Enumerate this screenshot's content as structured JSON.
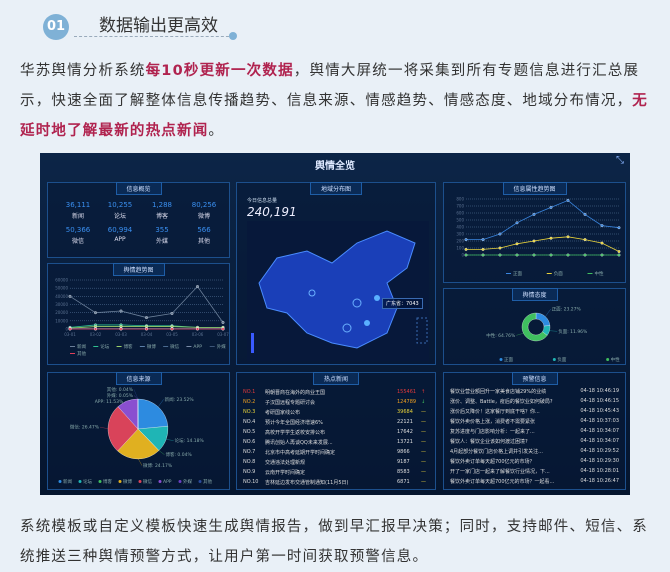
{
  "header": {
    "number": "01",
    "title": "数据输出更高效"
  },
  "intro": {
    "p1_a": "华苏舆情分析系统",
    "p1_hl": "每10秒更新一次数据",
    "p1_b": "，舆情大屏统一将采集到所有专题信息进行汇总展示，快速全面了解整体信息传播趋势、信息来源、情感趋势、情感态度、地域分布情况，",
    "p1_hl2": "无延时地了解最新的热点新闻",
    "p1_c": "。"
  },
  "outro": "系统模板或自定义模板快速生成舆情报告，做到早汇报早决策；同时，支持邮件、短信、系统推送三种舆情预警方式，让用户第一时间获取预警信息。",
  "dashboard": {
    "title": "舆情全览",
    "expand_icon": "collapse-arrows-icon",
    "overview": {
      "title": "信息概览",
      "stats": [
        {
          "value": "36,111",
          "label": "新闻"
        },
        {
          "value": "10,255",
          "label": "论坛"
        },
        {
          "value": "1,288",
          "label": "博客"
        },
        {
          "value": "80,256",
          "label": "微博"
        },
        {
          "value": "50,366",
          "label": "微信"
        },
        {
          "value": "60,994",
          "label": "APP"
        },
        {
          "value": "355",
          "label": "外媒"
        },
        {
          "value": "566",
          "label": "其他"
        }
      ]
    },
    "map": {
      "title": "地域分布图",
      "total_label": "今日信息总量",
      "total": "240,191",
      "tooltip": "广东省：7043"
    },
    "chart_data": [
      {
        "type": "line",
        "title": "舆情趋势图",
        "ylim": [
          0,
          60000
        ],
        "yticks": [
          "0",
          "10000",
          "20000",
          "30000",
          "40000",
          "50000",
          "60000"
        ],
        "categories": [
          "03-01",
          "03-02",
          "03-03",
          "03-04",
          "03-05",
          "03-06",
          "03-07"
        ],
        "series": [
          {
            "name": "新闻",
            "color": "#6b7f99",
            "values": [
              40000,
              20000,
              22000,
              14000,
              19000,
              52000,
              8000
            ]
          },
          {
            "name": "论坛",
            "color": "#2fbf8f",
            "values": [
              2000,
              5000,
              5000,
              4000,
              4000,
              2000,
              2000
            ]
          },
          {
            "name": "博客",
            "color": "#9ad06a",
            "values": [
              1000,
              3000,
              3000,
              3000,
              3000,
              2000,
              2000
            ]
          },
          {
            "name": "微博",
            "color": "#5c7fa8",
            "values": [
              500,
              500,
              500,
              500,
              500,
              500,
              500
            ]
          },
          {
            "name": "微信",
            "color": "#4a6a90",
            "values": [
              300,
              300,
              300,
              300,
              300,
              300,
              300
            ]
          },
          {
            "name": "APP",
            "color": "#7a8ca8",
            "values": [
              200,
              200,
              200,
              200,
              200,
              200,
              200
            ]
          },
          {
            "name": "外媒",
            "color": "#3d5678",
            "values": [
              100,
              100,
              100,
              100,
              100,
              100,
              100
            ]
          },
          {
            "name": "其他",
            "color": "#e0405a",
            "values": [
              0,
              0,
              0,
              0,
              0,
              0,
              0
            ]
          }
        ]
      },
      {
        "type": "line",
        "title": "信息属性趋势图",
        "ylim": [
          0,
          800
        ],
        "yticks": [
          "0",
          "100",
          "200",
          "300",
          "400",
          "500",
          "600",
          "700",
          "800"
        ],
        "series": [
          {
            "name": "正面",
            "color": "#3a86e0",
            "values": [
              220,
              220,
              300,
              460,
              580,
              680,
              780,
              580,
              420,
              390
            ]
          },
          {
            "name": "负面",
            "color": "#e8d23a",
            "values": [
              80,
              80,
              100,
              160,
              200,
              240,
              260,
              220,
              170,
              50
            ]
          },
          {
            "name": "中性",
            "color": "#3fbf5f",
            "values": [
              0,
              0,
              0,
              0,
              0,
              0,
              0,
              0,
              0,
              0
            ]
          }
        ]
      },
      {
        "type": "pie",
        "title": "舆情态度",
        "donut": true,
        "slices": [
          {
            "name": "正面",
            "value": 23.27,
            "label": "正面: 23.27%",
            "color": "#2d8be0"
          },
          {
            "name": "负面",
            "value": 11.96,
            "label": "负面: 11.96%",
            "color": "#1fb5b5"
          },
          {
            "name": "中性",
            "value": 64.76,
            "label": "中性: 64.76%",
            "color": "#3fbf5f"
          }
        ]
      },
      {
        "type": "pie",
        "title": "信息来源",
        "slices": [
          {
            "name": "新闻",
            "value": 23.52,
            "label": "新闻: 23.52%",
            "color": "#2d8be0"
          },
          {
            "name": "论坛",
            "value": 14.18,
            "label": "论坛: 14.18%",
            "color": "#1fb5b5"
          },
          {
            "name": "博客",
            "value": 0.04,
            "label": "博客: 0.04%",
            "color": "#3fbf5f"
          },
          {
            "name": "微博",
            "value": 24.17,
            "label": "微博: 24.17%",
            "color": "#e0b020"
          },
          {
            "name": "微信",
            "value": 26.47,
            "label": "微信: 26.47%",
            "color": "#d9435a"
          },
          {
            "name": "APP",
            "value": 11.53,
            "label": "APP: 11.53%",
            "color": "#8a4fd0"
          },
          {
            "name": "外媒",
            "value": 0.05,
            "label": "外媒: 0.05%",
            "color": "#6a3fc0"
          },
          {
            "name": "其他",
            "value": 0.04,
            "label": "其他: 0.04%",
            "color": "#2a4a9a"
          }
        ]
      }
    ],
    "hotnews": {
      "title": "热点新闻",
      "rows": [
        {
          "rank": "NO.1",
          "title": "明朝晋商在海外的商业王国",
          "value": "155461",
          "trend": "↑",
          "color": "#e03a3a"
        },
        {
          "rank": "NO.2",
          "title": "子汉国远程专题研讨会",
          "value": "124789",
          "trend": "↓",
          "color": "#f0a020"
        },
        {
          "rank": "NO.3",
          "title": "考研国家线公布",
          "value": "39684",
          "trend": "—",
          "color": "#e8d23a"
        },
        {
          "rank": "NO.4",
          "title": "预计今年全国经济增速6%",
          "value": "22121",
          "trend": "—",
          "color": "#ddd"
        },
        {
          "rank": "NO.5",
          "title": "高校开学学生返校安排公布",
          "value": "17642",
          "trend": "—",
          "color": "#ddd"
        },
        {
          "rank": "NO.6",
          "title": "腾讯创始人再谈QQ未来发展...",
          "value": "13721",
          "trend": "—",
          "color": "#ddd"
        },
        {
          "rank": "NO.7",
          "title": "北京市中高考延期开学时间确定",
          "value": "9866",
          "trend": "—",
          "color": "#ddd"
        },
        {
          "rank": "NO.8",
          "title": "交通违法处理新规",
          "value": "9187",
          "trend": "—",
          "color": "#ddd"
        },
        {
          "rank": "NO.9",
          "title": "云南开学时间确定",
          "value": "8583",
          "trend": "—",
          "color": "#ddd"
        },
        {
          "rank": "NO.10",
          "title": "吉林延边发布交通管制通知(11月5日)",
          "value": "6871",
          "trend": "—",
          "color": "#ddd"
        }
      ]
    },
    "warnings": {
      "title": "预警信息",
      "rows": [
        {
          "title": "餐饮业营业额回升一家美食店铺29%的业绩",
          "time": "04-18 10:46:19"
        },
        {
          "title": "涨价、调整、Battle，疫后的餐饮业如何破局?",
          "time": "04-18 10:46:15"
        },
        {
          "title": "涨价后又降价！这家餐厅到底干啥？你...",
          "time": "04-18 10:45:43"
        },
        {
          "title": "餐饮外卖价格上涨，消费者不需要紧张",
          "time": "04-18 10:37:03"
        },
        {
          "title": "复苏进度与门店影响分析：一起来了...",
          "time": "04-18 10:34:07"
        },
        {
          "title": "餐饮人：餐饮企业该如何渡过困境?",
          "time": "04-18 10:34:07"
        },
        {
          "title": "4月起部分餐饮门店价格上调并引发关注...",
          "time": "04-18 10:29:52"
        },
        {
          "title": "餐饮外卖订单每天超700亿元的市场？",
          "time": "04-18 10:29:30"
        },
        {
          "title": "开了一家门店一起来了解餐饮行业情况，下...",
          "time": "04-18 10:28:01"
        },
        {
          "title": "餐饮外卖订单每天超700亿元的市场？一起看...",
          "time": "04-18 10:26:47"
        }
      ]
    }
  }
}
